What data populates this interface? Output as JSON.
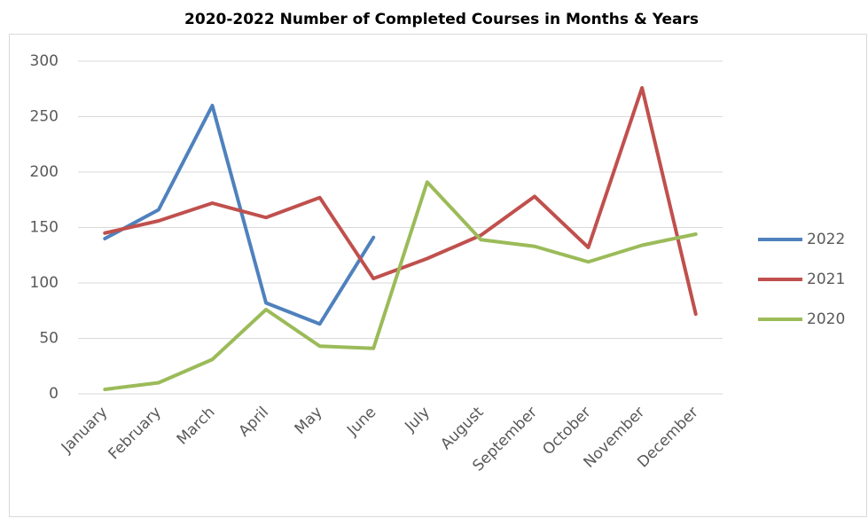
{
  "chart_data": {
    "type": "line",
    "title": "2020-2022 Number of Completed Courses in Months & Years",
    "categories": [
      "January",
      "February",
      "March",
      "April",
      "May",
      "June",
      "July",
      "August",
      "September",
      "October",
      "November",
      "December"
    ],
    "series": [
      {
        "name": "2022",
        "color": "#4f81bd",
        "values": [
          140,
          166,
          260,
          82,
          63,
          141,
          null,
          null,
          null,
          null,
          null,
          null
        ]
      },
      {
        "name": "2021",
        "color": "#c0504d",
        "values": [
          145,
          156,
          172,
          159,
          177,
          104,
          122,
          143,
          178,
          132,
          276,
          72
        ]
      },
      {
        "name": "2020",
        "color": "#9bbb59",
        "values": [
          4,
          10,
          31,
          76,
          43,
          41,
          191,
          139,
          133,
          119,
          134,
          144
        ]
      }
    ],
    "ylim": [
      0,
      300
    ],
    "yticks": [
      0,
      50,
      100,
      150,
      200,
      250,
      300
    ],
    "grid": true,
    "legend": "right"
  }
}
